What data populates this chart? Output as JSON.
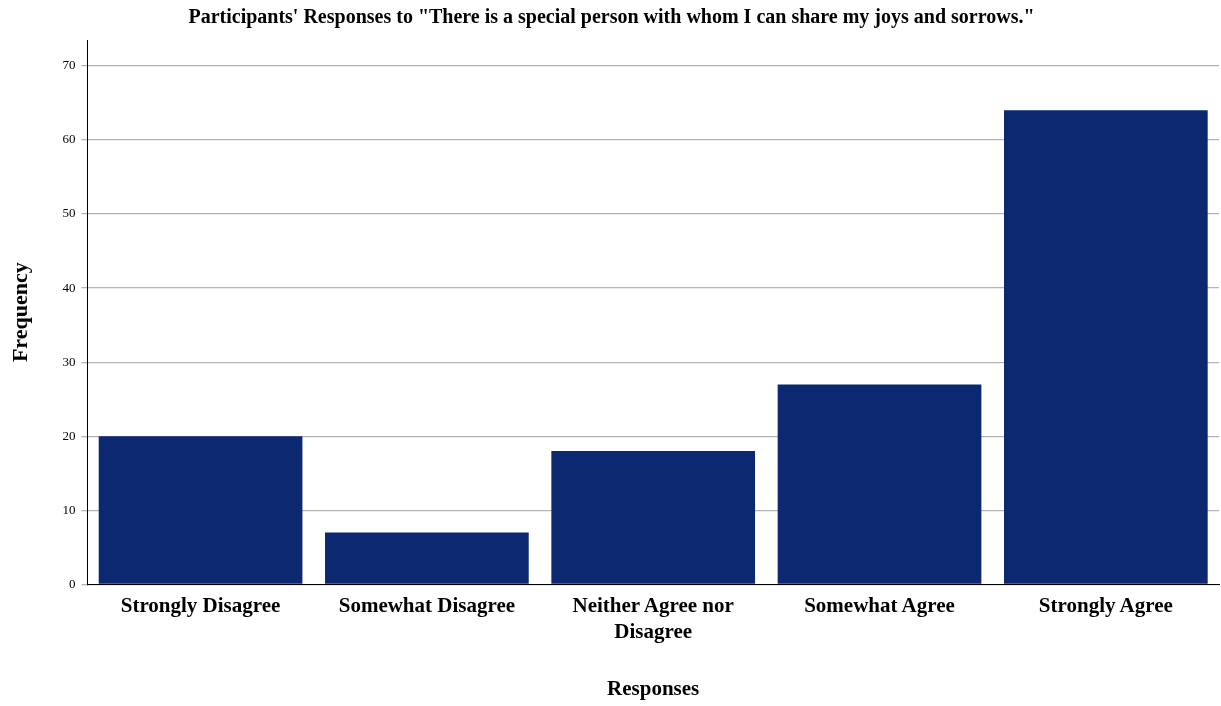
{
  "chart_data": {
    "type": "bar",
    "title": "Participants' Responses to \"There is a special person with whom I can share my joys and sorrows.\"",
    "xlabel": "Responses",
    "ylabel": "Frequency",
    "categories": [
      "Strongly Disagree",
      "Somewhat Disagree",
      "Neither Agree nor Disagree",
      "Somewhat Agree",
      "Strongly Agree"
    ],
    "values": [
      20,
      7,
      18,
      27,
      64
    ],
    "color": "#0b2870",
    "ylim": [
      0,
      73.5
    ],
    "yticks": [
      0,
      10,
      20,
      30,
      40,
      50,
      60,
      70
    ],
    "grid": "y",
    "legend": false
  }
}
